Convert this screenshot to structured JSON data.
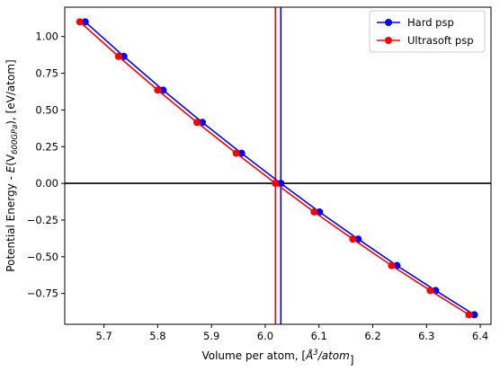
{
  "chart_data": {
    "type": "line",
    "title": "",
    "xlabel_parts": [
      "Volume per atom, [",
      "Å",
      "3",
      "/",
      "atom",
      "]"
    ],
    "ylabel_parts": [
      "Potential Energy - ",
      "E",
      "(V",
      "600GPa",
      "), [eV/atom]"
    ],
    "xlim": [
      5.627,
      6.42
    ],
    "ylim": [
      -0.96,
      1.2
    ],
    "xticks": [
      5.7,
      5.8,
      5.9,
      6.0,
      6.1,
      6.2,
      6.3,
      6.4
    ],
    "xtick_labels": [
      "5.7",
      "5.8",
      "5.9",
      "6.0",
      "6.1",
      "6.2",
      "6.3",
      "6.4"
    ],
    "yticks": [
      -0.75,
      -0.5,
      -0.25,
      0.0,
      0.25,
      0.5,
      0.75,
      1.0
    ],
    "ytick_labels": [
      "−0.75",
      "−0.50",
      "−0.25",
      "0.00",
      "0.25",
      "0.50",
      "0.75",
      "1.00"
    ],
    "legend_position": "top-right",
    "series": [
      {
        "name": "Hard psp",
        "color": "#0000ff",
        "x": [
          5.665,
          5.737,
          5.81,
          5.883,
          5.956,
          6.029,
          6.101,
          6.173,
          6.245,
          6.317,
          6.389
        ],
        "y": [
          1.1,
          0.865,
          0.635,
          0.415,
          0.205,
          0.0,
          -0.195,
          -0.38,
          -0.56,
          -0.73,
          -0.895
        ]
      },
      {
        "name": "Ultrasoft psp",
        "color": "#ff0000",
        "x": [
          5.655,
          5.727,
          5.8,
          5.873,
          5.946,
          6.019,
          6.091,
          6.163,
          6.235,
          6.307,
          6.379
        ],
        "y": [
          1.1,
          0.865,
          0.635,
          0.415,
          0.205,
          0.0,
          -0.195,
          -0.38,
          -0.56,
          -0.73,
          -0.895
        ]
      }
    ],
    "reference_lines": [
      {
        "orientation": "horizontal",
        "value": 0.0,
        "color": "#000000"
      },
      {
        "orientation": "vertical",
        "value": 6.029,
        "color": "#0000ff"
      },
      {
        "orientation": "vertical",
        "value": 6.019,
        "color": "#ff0000"
      }
    ]
  }
}
